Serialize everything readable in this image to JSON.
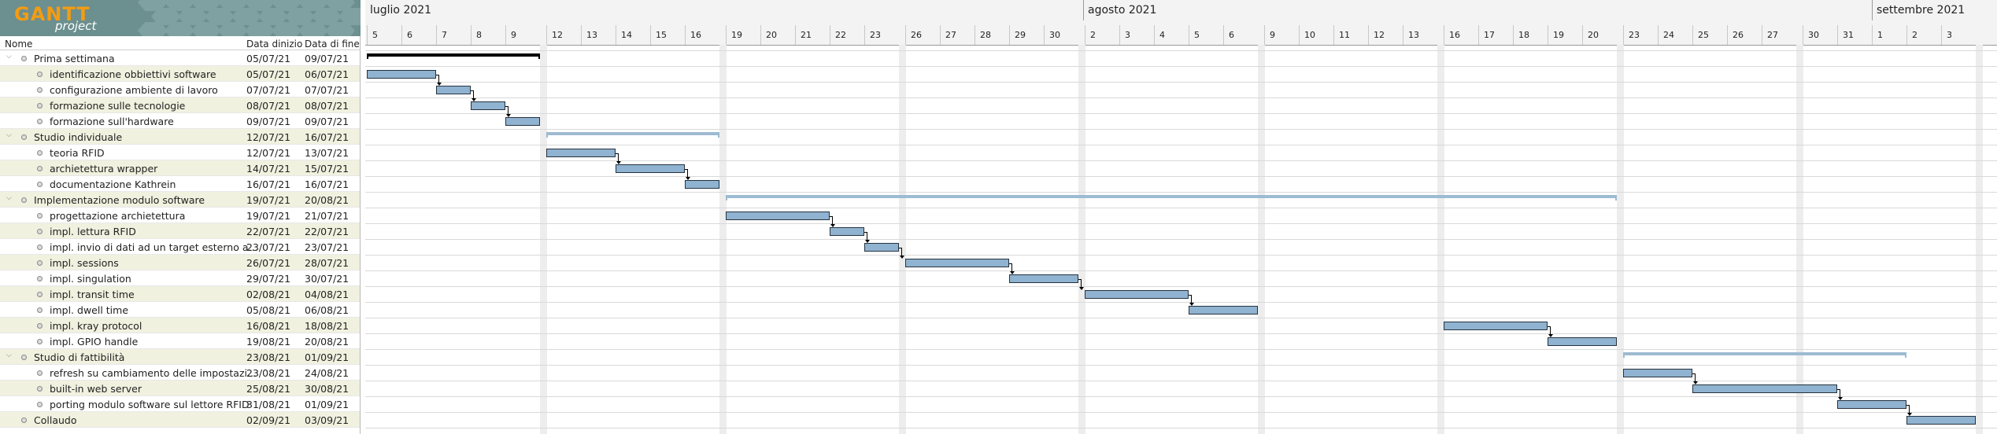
{
  "logo": {
    "word": "GANTT",
    "sub": "project"
  },
  "columns": {
    "name": "Nome",
    "start": "Data dinizio",
    "end": "Data di fine"
  },
  "tasks": [
    {
      "name": "Prima settimana",
      "start": "05/07/21",
      "end": "09/07/21",
      "level": 0,
      "group": true
    },
    {
      "name": "identificazione obbiettivi software",
      "start": "05/07/21",
      "end": "06/07/21",
      "level": 1
    },
    {
      "name": "configurazione ambiente di lavoro",
      "start": "07/07/21",
      "end": "07/07/21",
      "level": 1
    },
    {
      "name": "formazione sulle tecnologie",
      "start": "08/07/21",
      "end": "08/07/21",
      "level": 1
    },
    {
      "name": "formazione sull'hardware",
      "start": "09/07/21",
      "end": "09/07/21",
      "level": 1
    },
    {
      "name": "Studio individuale",
      "start": "12/07/21",
      "end": "16/07/21",
      "level": 0,
      "group": true
    },
    {
      "name": "teoria RFID",
      "start": "12/07/21",
      "end": "13/07/21",
      "level": 1
    },
    {
      "name": "archietettura wrapper",
      "start": "14/07/21",
      "end": "15/07/21",
      "level": 1
    },
    {
      "name": "documentazione Kathrein",
      "start": "16/07/21",
      "end": "16/07/21",
      "level": 1
    },
    {
      "name": "Implementazione modulo software",
      "start": "19/07/21",
      "end": "20/08/21",
      "level": 0,
      "group": true
    },
    {
      "name": "progettazione archietettura",
      "start": "19/07/21",
      "end": "21/07/21",
      "level": 1
    },
    {
      "name": "impl. lettura RFID",
      "start": "22/07/21",
      "end": "22/07/21",
      "level": 1
    },
    {
      "name": "impl. invio di dati ad un target esterno a...",
      "start": "23/07/21",
      "end": "23/07/21",
      "level": 1
    },
    {
      "name": "impl. sessions",
      "start": "26/07/21",
      "end": "28/07/21",
      "level": 1
    },
    {
      "name": "impl. singulation",
      "start": "29/07/21",
      "end": "30/07/21",
      "level": 1
    },
    {
      "name": "impl. transit time",
      "start": "02/08/21",
      "end": "04/08/21",
      "level": 1
    },
    {
      "name": "impl. dwell time",
      "start": "05/08/21",
      "end": "06/08/21",
      "level": 1
    },
    {
      "name": "impl. kray protocol",
      "start": "16/08/21",
      "end": "18/08/21",
      "level": 1
    },
    {
      "name": "impl. GPIO handle",
      "start": "19/08/21",
      "end": "20/08/21",
      "level": 1
    },
    {
      "name": "Studio di fattibilità",
      "start": "23/08/21",
      "end": "01/09/21",
      "level": 0,
      "group": true
    },
    {
      "name": "refresh su cambiamento delle impostazi...",
      "start": "23/08/21",
      "end": "24/08/21",
      "level": 1
    },
    {
      "name": "built-in web server",
      "start": "25/08/21",
      "end": "30/08/21",
      "level": 1
    },
    {
      "name": "porting modulo software sul lettore RFID",
      "start": "31/08/21",
      "end": "01/09/21",
      "level": 1
    },
    {
      "name": "Collaudo",
      "start": "02/09/21",
      "end": "03/09/21",
      "level": 0,
      "group": false
    }
  ],
  "months": [
    "luglio 2021",
    "agosto 2021",
    "settembre 2021"
  ],
  "days": [
    "5",
    "6",
    "7",
    "8",
    "9",
    "12",
    "13",
    "14",
    "15",
    "16",
    "19",
    "20",
    "21",
    "22",
    "23",
    "26",
    "27",
    "28",
    "29",
    "30",
    "2",
    "3",
    "4",
    "5",
    "6",
    "9",
    "10",
    "11",
    "12",
    "13",
    "16",
    "17",
    "18",
    "19",
    "20",
    "23",
    "24",
    "25",
    "26",
    "27",
    "30",
    "31",
    "1",
    "2",
    "3"
  ],
  "colors": {
    "task_bar": "#8fb3d0",
    "summary_bar": "#9dbbd2",
    "summary_bar_selected": "#000000",
    "weekend": "#ededed",
    "logo_bg": "#6c8f8f",
    "logo_word": "#f39c12"
  }
}
